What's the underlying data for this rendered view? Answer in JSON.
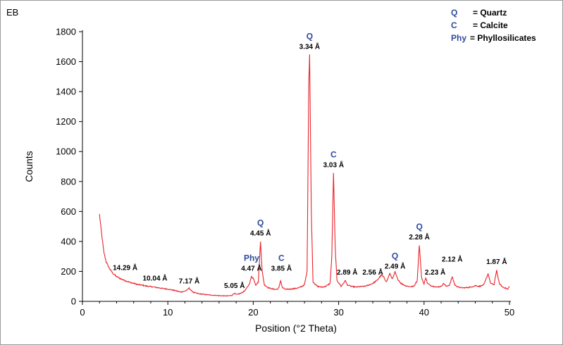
{
  "chart_data": {
    "type": "line",
    "title": "",
    "corner_label": "EB",
    "xlabel": "Position (°2 Theta)",
    "ylabel": "Counts",
    "xlim": [
      0,
      50
    ],
    "ylim": [
      0,
      1800
    ],
    "x_ticks": [
      0,
      10,
      20,
      30,
      40,
      50
    ],
    "y_ticks": [
      0,
      200,
      400,
      600,
      800,
      1000,
      1200,
      1400,
      1600,
      1800
    ],
    "series_color": "#e8232a",
    "series": [
      {
        "points": [
          [
            2.0,
            580
          ],
          [
            2.2,
            470
          ],
          [
            2.5,
            330
          ],
          [
            2.8,
            260
          ],
          [
            3.2,
            215
          ],
          [
            3.6,
            185
          ],
          [
            4.0,
            165
          ],
          [
            4.5,
            150
          ],
          [
            5.0,
            138
          ],
          [
            5.5,
            128
          ],
          [
            6.0,
            120
          ],
          [
            6.5,
            112
          ],
          [
            7.0,
            108
          ],
          [
            7.5,
            102
          ],
          [
            8.0,
            98
          ],
          [
            8.5,
            94
          ],
          [
            9.0,
            90
          ],
          [
            9.5,
            85
          ],
          [
            10.0,
            82
          ],
          [
            10.5,
            76
          ],
          [
            11.0,
            70
          ],
          [
            11.5,
            62
          ],
          [
            12.0,
            68
          ],
          [
            12.3,
            78
          ],
          [
            12.5,
            88
          ],
          [
            12.7,
            74
          ],
          [
            13.0,
            60
          ],
          [
            13.5,
            52
          ],
          [
            14.0,
            48
          ],
          [
            14.5,
            45
          ],
          [
            15.0,
            42
          ],
          [
            15.5,
            40
          ],
          [
            16.0,
            38
          ],
          [
            16.5,
            37
          ],
          [
            17.0,
            36
          ],
          [
            17.5,
            40
          ],
          [
            17.8,
            55
          ],
          [
            18.0,
            45
          ],
          [
            18.5,
            52
          ],
          [
            19.0,
            70
          ],
          [
            19.5,
            110
          ],
          [
            19.8,
            165
          ],
          [
            20.0,
            155
          ],
          [
            20.3,
            110
          ],
          [
            20.6,
            130
          ],
          [
            20.85,
            400
          ],
          [
            21.05,
            200
          ],
          [
            21.3,
            110
          ],
          [
            21.8,
            90
          ],
          [
            22.3,
            82
          ],
          [
            22.8,
            80
          ],
          [
            23.0,
            90
          ],
          [
            23.2,
            140
          ],
          [
            23.4,
            92
          ],
          [
            23.8,
            80
          ],
          [
            24.3,
            82
          ],
          [
            24.8,
            85
          ],
          [
            25.3,
            90
          ],
          [
            25.7,
            100
          ],
          [
            26.0,
            110
          ],
          [
            26.3,
            200
          ],
          [
            26.5,
            1460
          ],
          [
            26.6,
            1650
          ],
          [
            26.8,
            600
          ],
          [
            27.0,
            130
          ],
          [
            27.5,
            100
          ],
          [
            28.0,
            95
          ],
          [
            28.5,
            100
          ],
          [
            29.0,
            120
          ],
          [
            29.2,
            300
          ],
          [
            29.4,
            860
          ],
          [
            29.6,
            350
          ],
          [
            29.8,
            140
          ],
          [
            30.3,
            100
          ],
          [
            30.8,
            140
          ],
          [
            31.0,
            110
          ],
          [
            31.5,
            100
          ],
          [
            32.0,
            95
          ],
          [
            32.5,
            98
          ],
          [
            33.0,
            100
          ],
          [
            33.5,
            108
          ],
          [
            34.0,
            120
          ],
          [
            34.5,
            140
          ],
          [
            35.0,
            175
          ],
          [
            35.3,
            160
          ],
          [
            35.6,
            130
          ],
          [
            36.0,
            185
          ],
          [
            36.3,
            150
          ],
          [
            36.6,
            195
          ],
          [
            36.9,
            150
          ],
          [
            37.3,
            120
          ],
          [
            37.8,
            105
          ],
          [
            38.3,
            98
          ],
          [
            38.8,
            100
          ],
          [
            39.2,
            140
          ],
          [
            39.45,
            380
          ],
          [
            39.7,
            160
          ],
          [
            40.0,
            115
          ],
          [
            40.2,
            160
          ],
          [
            40.4,
            120
          ],
          [
            40.8,
            105
          ],
          [
            41.5,
            95
          ],
          [
            42.0,
            100
          ],
          [
            42.3,
            120
          ],
          [
            42.6,
            100
          ],
          [
            43.0,
            110
          ],
          [
            43.3,
            165
          ],
          [
            43.6,
            110
          ],
          [
            44.0,
            95
          ],
          [
            44.5,
            90
          ],
          [
            45.0,
            92
          ],
          [
            45.5,
            95
          ],
          [
            46.0,
            105
          ],
          [
            46.5,
            100
          ],
          [
            47.0,
            110
          ],
          [
            47.5,
            185
          ],
          [
            47.8,
            120
          ],
          [
            48.2,
            110
          ],
          [
            48.5,
            210
          ],
          [
            48.8,
            120
          ],
          [
            49.2,
            95
          ],
          [
            49.5,
            90
          ],
          [
            49.8,
            80
          ],
          [
            50.0,
            100
          ]
        ]
      }
    ],
    "annotations": [
      {
        "x": 5.0,
        "y": 200,
        "phase": "",
        "d": "14.29 Å"
      },
      {
        "x": 8.5,
        "y": 130,
        "phase": "",
        "d": "10.04 Å"
      },
      {
        "x": 12.5,
        "y": 110,
        "phase": "",
        "d": "7.17 Å"
      },
      {
        "x": 17.8,
        "y": 80,
        "phase": "",
        "d": "5.05 Å"
      },
      {
        "x": 19.8,
        "y": 195,
        "phase": "Phy",
        "d": "4.47 Å"
      },
      {
        "x": 20.85,
        "y": 430,
        "phase": "Q",
        "d": "4.45 Å"
      },
      {
        "x": 23.3,
        "y": 195,
        "phase": "C",
        "d": "3.85 Å"
      },
      {
        "x": 26.6,
        "y": 1675,
        "phase": "Q",
        "d": "3.34 Å"
      },
      {
        "x": 29.4,
        "y": 885,
        "phase": "C",
        "d": "3.03 Å"
      },
      {
        "x": 31.0,
        "y": 170,
        "phase": "",
        "d": "2.89 Å"
      },
      {
        "x": 34.0,
        "y": 170,
        "phase": "",
        "d": "2.56 Å"
      },
      {
        "x": 36.6,
        "y": 210,
        "phase": "Q",
        "d": "2.49 Å"
      },
      {
        "x": 39.45,
        "y": 405,
        "phase": "Q",
        "d": "2.28 Å"
      },
      {
        "x": 41.3,
        "y": 170,
        "phase": "",
        "d": "2.23 Å"
      },
      {
        "x": 43.3,
        "y": 255,
        "phase": "",
        "d": "2.12 Å"
      },
      {
        "x": 48.5,
        "y": 240,
        "phase": "",
        "d": "1.87 Å"
      }
    ],
    "legend": [
      {
        "symbol": "Q",
        "text": "= Quartz"
      },
      {
        "symbol": "C",
        "text": "= Calcite"
      },
      {
        "symbol": "Phy",
        "text": "= Phyllosilicates"
      }
    ],
    "legend_position": "top-right",
    "grid": false
  }
}
